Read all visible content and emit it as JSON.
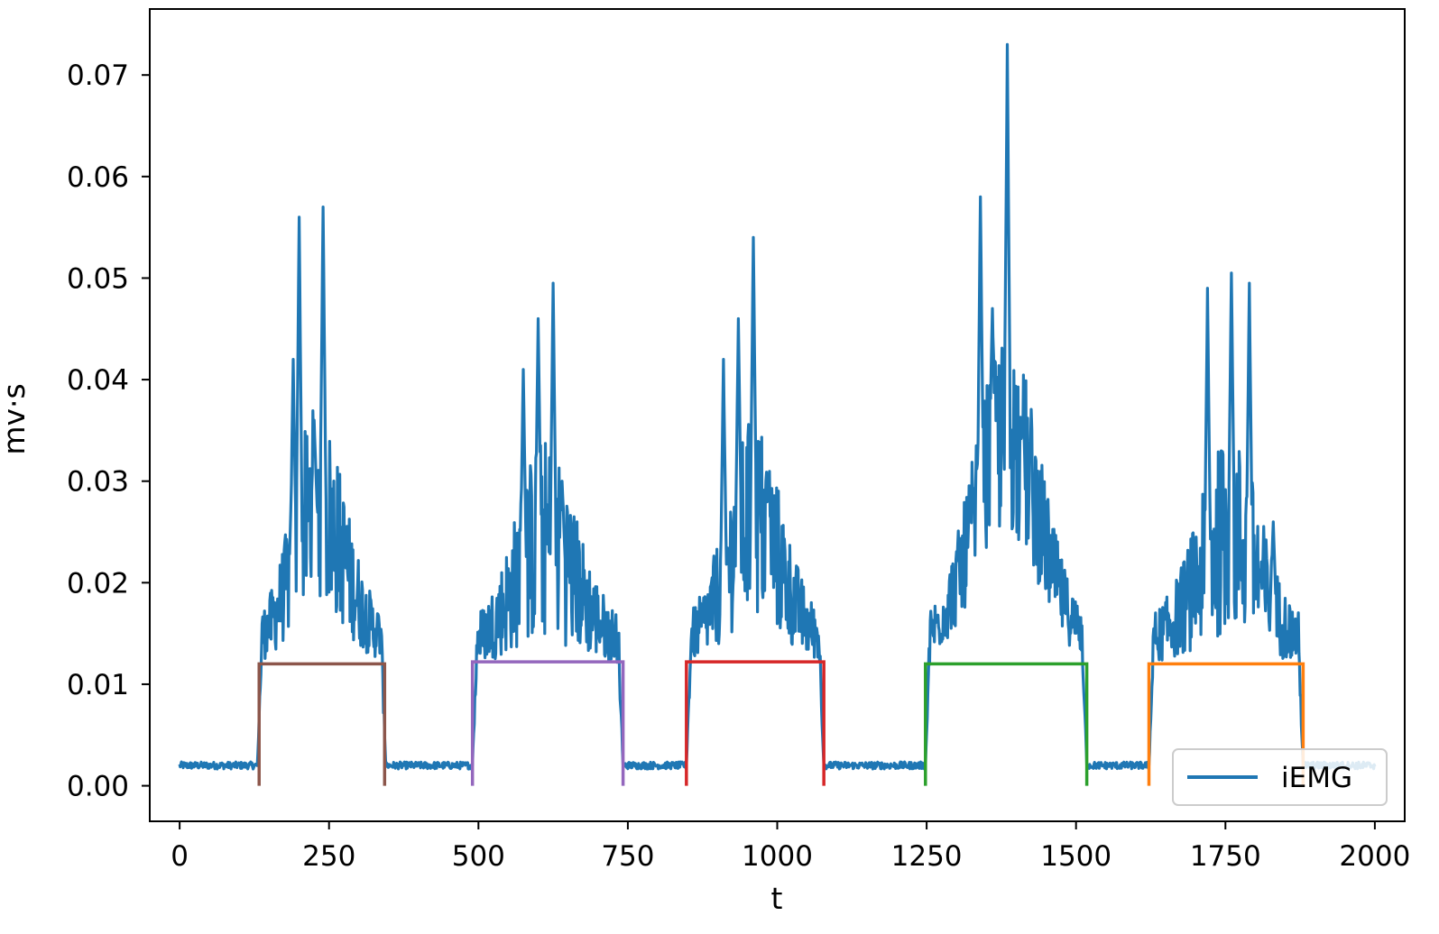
{
  "chart_data": {
    "type": "line",
    "title": "",
    "xlabel": "t",
    "ylabel": "mv·s",
    "xlim": [
      -50,
      2050
    ],
    "ylim": [
      -0.0035,
      0.0765
    ],
    "xticks": [
      0,
      250,
      500,
      750,
      1000,
      1250,
      1500,
      1750,
      2000
    ],
    "xtick_labels": [
      "0",
      "250",
      "500",
      "750",
      "1000",
      "1250",
      "1500",
      "1750",
      "2000"
    ],
    "yticks": [
      0.0,
      0.01,
      0.02,
      0.03,
      0.04,
      0.05,
      0.06,
      0.07
    ],
    "ytick_labels": [
      "0.00",
      "0.01",
      "0.02",
      "0.03",
      "0.04",
      "0.05",
      "0.06",
      "0.07"
    ],
    "grid": false,
    "legend": {
      "position": "lower-right",
      "entries": [
        "iEMG"
      ]
    },
    "series": [
      {
        "name": "iEMG",
        "color": "#1f77b4",
        "x_start": 0,
        "x_end": 2000,
        "baseline": 0.002,
        "peaks": [
          {
            "start": 130,
            "end": 345,
            "peak_x": 230,
            "peak_y": 0.057,
            "spikes": [
              [
                200,
                0.056
              ],
              [
                240,
                0.057
              ],
              [
                225,
                0.036
              ],
              [
                190,
                0.042
              ]
            ]
          },
          {
            "start": 490,
            "end": 742,
            "peak_x": 610,
            "peak_y": 0.0495,
            "spikes": [
              [
                625,
                0.0495
              ],
              [
                600,
                0.046
              ],
              [
                575,
                0.041
              ],
              [
                640,
                0.03
              ]
            ]
          },
          {
            "start": 848,
            "end": 1078,
            "peak_x": 960,
            "peak_y": 0.054,
            "spikes": [
              [
                960,
                0.054
              ],
              [
                935,
                0.046
              ],
              [
                910,
                0.042
              ],
              [
                985,
                0.03
              ]
            ]
          },
          {
            "start": 1248,
            "end": 1518,
            "peak_x": 1385,
            "peak_y": 0.073,
            "spikes": [
              [
                1385,
                0.073
              ],
              [
                1340,
                0.058
              ],
              [
                1360,
                0.047
              ],
              [
                1410,
                0.035
              ],
              [
                1470,
                0.0145
              ]
            ]
          },
          {
            "start": 1622,
            "end": 1880,
            "peak_x": 1760,
            "peak_y": 0.0505,
            "spikes": [
              [
                1760,
                0.0505
              ],
              [
                1720,
                0.049
              ],
              [
                1790,
                0.0495
              ],
              [
                1830,
                0.026
              ]
            ]
          }
        ]
      }
    ],
    "windows": [
      {
        "start": 133,
        "end": 343,
        "level": 0.012,
        "color": "#8c564b"
      },
      {
        "start": 490,
        "end": 742,
        "level": 0.0122,
        "color": "#9467bd"
      },
      {
        "start": 848,
        "end": 1078,
        "level": 0.0122,
        "color": "#d62728"
      },
      {
        "start": 1248,
        "end": 1518,
        "level": 0.012,
        "color": "#2ca02c"
      },
      {
        "start": 1622,
        "end": 1880,
        "level": 0.012,
        "color": "#ff7f0e"
      }
    ]
  }
}
